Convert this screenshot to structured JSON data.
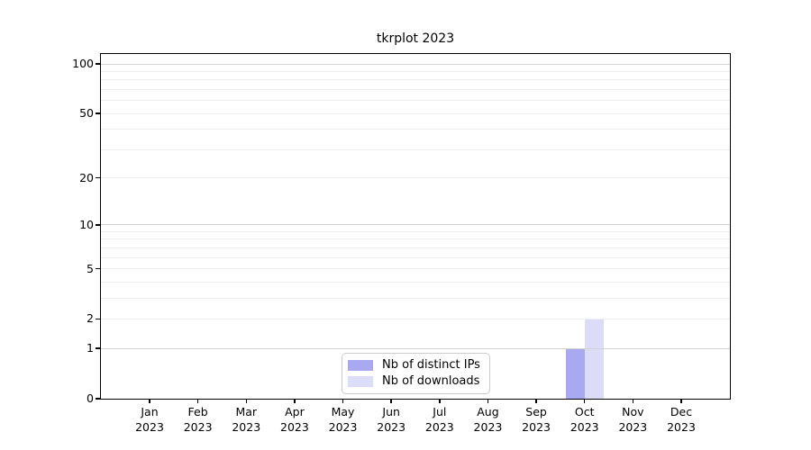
{
  "figure": {
    "background": "#ffffff"
  },
  "chart_data": {
    "type": "bar",
    "title": "tkrplot 2023",
    "x": {
      "categories": [
        "Jan",
        "Feb",
        "Mar",
        "Apr",
        "May",
        "Jun",
        "Jul",
        "Aug",
        "Sep",
        "Oct",
        "Nov",
        "Dec"
      ],
      "year": "2023"
    },
    "y_axis": {
      "scale": "log1p",
      "ticks": [
        0,
        1,
        2,
        5,
        10,
        20,
        50,
        100
      ],
      "top_value": 115
    },
    "series": [
      {
        "name": "Nb of distinct IPs",
        "color": "#a9a9f2",
        "values": [
          0,
          0,
          0,
          0,
          0,
          0,
          0,
          0,
          0,
          1,
          0,
          0
        ]
      },
      {
        "name": "Nb of downloads",
        "color": "#dcdcf8",
        "values": [
          0,
          0,
          0,
          0,
          0,
          0,
          0,
          0,
          0,
          2,
          0,
          0
        ]
      }
    ],
    "legend": {
      "position": "bottom-center",
      "entries": [
        "Nb of distinct IPs",
        "Nb of downloads"
      ],
      "border_color": "#cccccc",
      "background": "#ffffff"
    },
    "grid": {
      "major_values": [
        1,
        10,
        100
      ],
      "minor_values": [
        2,
        3,
        4,
        5,
        6,
        7,
        8,
        9,
        20,
        30,
        40,
        50,
        60,
        70,
        80,
        90
      ],
      "major_color": "#d2d2d2",
      "minor_color": "#ededed"
    },
    "axis_color": "#000000",
    "text_color": "#000000"
  }
}
